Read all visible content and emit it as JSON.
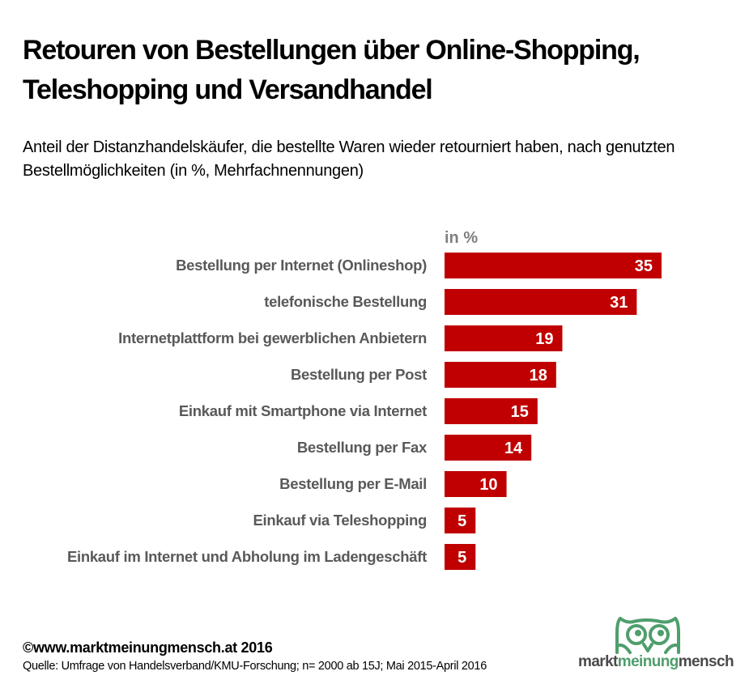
{
  "title": "Retouren von Bestellungen über Online-Shopping, Teleshopping und Versandhandel",
  "subtitle": "Anteil der Distanzhandelskäufer, die bestellte Waren wieder retourniert haben, nach genutzten Bestellmöglichkeiten (in %, Mehrfachnennungen)",
  "footer": {
    "copyright": "©www.marktmeinungmensch.at 2016",
    "source": "Quelle: Umfrage von Handelsverband/KMU-Forschung; n= 2000 ab 15J; Mai 2015-April 2016"
  },
  "logo": {
    "part1": "markt",
    "part2": "meinung",
    "part3": "mensch",
    "icon": "owl-icon",
    "colors": {
      "green": "#4f9e6c",
      "gray": "#4a4a4a"
    }
  },
  "colors": {
    "bar": "#c00000",
    "label": "#595959",
    "unit": "#7f7f7f"
  },
  "chart_data": {
    "type": "bar",
    "orientation": "horizontal",
    "title": "Retouren von Bestellungen über Online-Shopping, Teleshopping und Versandhandel",
    "unit_label": "in %",
    "categories": [
      "Bestellung per Internet (Onlineshop)",
      "telefonische Bestellung",
      "Internetplattform bei gewerblichen Anbietern",
      "Bestellung per Post",
      "Einkauf mit Smartphone via Internet",
      "Bestellung per Fax",
      "Bestellung per E-Mail",
      "Einkauf via Teleshopping",
      "Einkauf im Internet und Abholung im Ladengeschäft"
    ],
    "values": [
      35,
      31,
      19,
      18,
      15,
      14,
      10,
      5,
      5
    ],
    "xlim": [
      0,
      35
    ],
    "grid": false,
    "legend": "none"
  }
}
